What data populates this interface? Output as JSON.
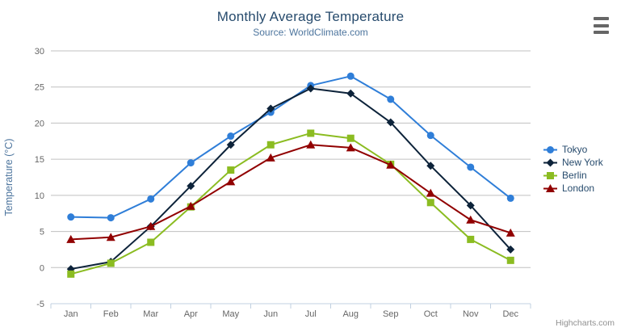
{
  "chart_data": {
    "type": "line",
    "title": "Monthly Average Temperature",
    "subtitle": "Source: WorldClimate.com",
    "categories": [
      "Jan",
      "Feb",
      "Mar",
      "Apr",
      "May",
      "Jun",
      "Jul",
      "Aug",
      "Sep",
      "Oct",
      "Nov",
      "Dec"
    ],
    "series": [
      {
        "name": "Tokyo",
        "color": "#2f7ed8",
        "marker": "circle",
        "values": [
          7.0,
          6.9,
          9.5,
          14.5,
          18.2,
          21.5,
          25.2,
          26.5,
          23.3,
          18.3,
          13.9,
          9.6
        ]
      },
      {
        "name": "New York",
        "color": "#0d233a",
        "marker": "diamond",
        "values": [
          -0.2,
          0.8,
          5.7,
          11.3,
          17.0,
          22.0,
          24.8,
          24.1,
          20.1,
          14.1,
          8.6,
          2.5
        ]
      },
      {
        "name": "Berlin",
        "color": "#8bbc21",
        "marker": "square",
        "values": [
          -0.9,
          0.6,
          3.5,
          8.4,
          13.5,
          17.0,
          18.6,
          17.9,
          14.3,
          9.0,
          3.9,
          1.0
        ]
      },
      {
        "name": "London",
        "color": "#910000",
        "marker": "triangle-up",
        "values": [
          3.9,
          4.2,
          5.7,
          8.5,
          11.9,
          15.2,
          17.0,
          16.6,
          14.2,
          10.3,
          6.6,
          4.8
        ]
      }
    ],
    "xlabel": "",
    "ylabel": "Temperature (°C)",
    "ylim": [
      -5,
      30
    ],
    "y_ticks": [
      -5,
      0,
      5,
      10,
      15,
      20,
      25,
      30
    ],
    "grid": true,
    "legend_position": "right"
  },
  "credits": {
    "label": "Highcharts.com"
  },
  "icons": {
    "context_menu": "hamburger-icon"
  },
  "styles": {
    "title_color": "#274b6d",
    "subtitle_color": "#4d759e",
    "axis_label_color": "#666666",
    "axis_title_color": "#4d759e",
    "grid_color": "#c0c0c0",
    "axis_line_color": "#c0d0e0",
    "legend_text_color": "#274b6d",
    "credits_color": "#909090",
    "menu_icon_color": "#666666",
    "background_color": "#ffffff"
  }
}
